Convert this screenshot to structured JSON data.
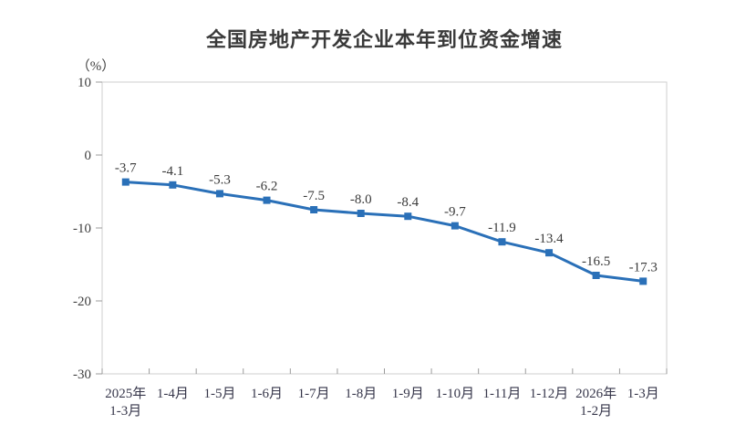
{
  "page": {
    "background": "#ffffff"
  },
  "chart_data": {
    "type": "line",
    "title": "全国房地产开发企业本年到位资金增速",
    "ylabel": "（%）",
    "xlabel": "",
    "categories": [
      [
        "2025年",
        "1-3月"
      ],
      [
        "1-4月"
      ],
      [
        "1-5月"
      ],
      [
        "1-6月"
      ],
      [
        "1-7月"
      ],
      [
        "1-8月"
      ],
      [
        "1-9月"
      ],
      [
        "1-10月"
      ],
      [
        "1-11月"
      ],
      [
        "1-12月"
      ],
      [
        "2026年",
        "1-2月"
      ],
      [
        "1-3月"
      ]
    ],
    "values": [
      -3.7,
      -4.1,
      -5.3,
      -6.2,
      -7.5,
      -8.0,
      -8.4,
      -9.7,
      -11.9,
      -13.4,
      -16.5,
      -17.3
    ],
    "data_labels": [
      "-3.7",
      "-4.1",
      "-5.3",
      "-6.2",
      "-7.5",
      "-8.0",
      "-8.4",
      "-9.7",
      "-11.9",
      "-13.4",
      "-16.5",
      "-17.3"
    ],
    "ylim": [
      -30,
      10
    ],
    "yticks": [
      10,
      0,
      -10,
      -20,
      -30
    ],
    "grid": false,
    "legend": "none",
    "colors": {
      "line": "#2a70b8",
      "marker": "#2a70b8",
      "plot_border": "#cfcfcf",
      "tick": "#9b9b9b",
      "tick_text": "#404040",
      "title_text": "#3a3a3a"
    }
  }
}
